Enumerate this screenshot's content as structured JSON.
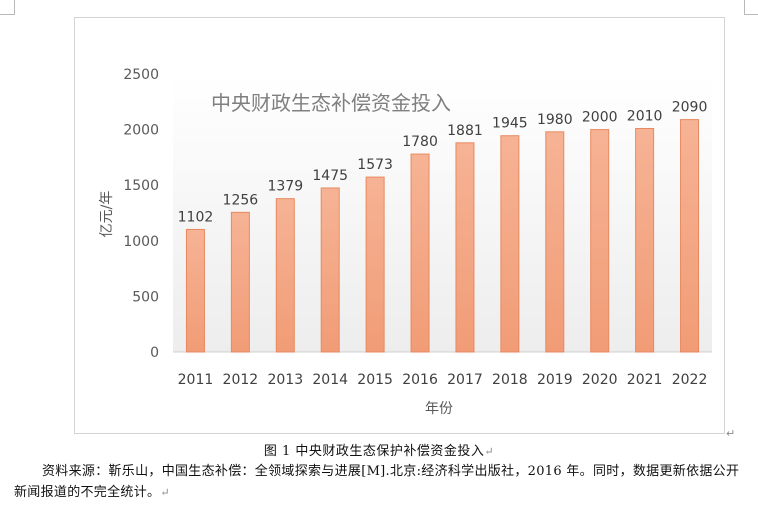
{
  "chart_data": {
    "type": "bar",
    "title": "中央财政生态补偿资金投入",
    "categories": [
      "2011",
      "2012",
      "2013",
      "2014",
      "2015",
      "2016",
      "2017",
      "2018",
      "2019",
      "2020",
      "2021",
      "2022"
    ],
    "series": [
      {
        "values": [
          1102,
          1256,
          1379,
          1475,
          1573,
          1780,
          1881,
          1945,
          1980,
          2000,
          2010,
          2090
        ]
      }
    ],
    "xlabel": "年份",
    "ylabel": "亿元/年",
    "ylim": [
      0,
      2500
    ],
    "yticks": [
      0,
      500,
      1000,
      1500,
      2000,
      2500
    ],
    "grid": false,
    "data_labels": true,
    "bar_color": "#f4a47f",
    "bar_border_color": "#e8895f"
  },
  "caption": "图 1  中央财政生态保护补偿资金投入",
  "paragraph_mark": "↵",
  "source_note": "资料来源：靳乐山，中国生态补偿：全领域探索与进展[M].北京:经济科学出版社，2016 年。同时，数据更新依据公开新闻报道的不完全统计。"
}
